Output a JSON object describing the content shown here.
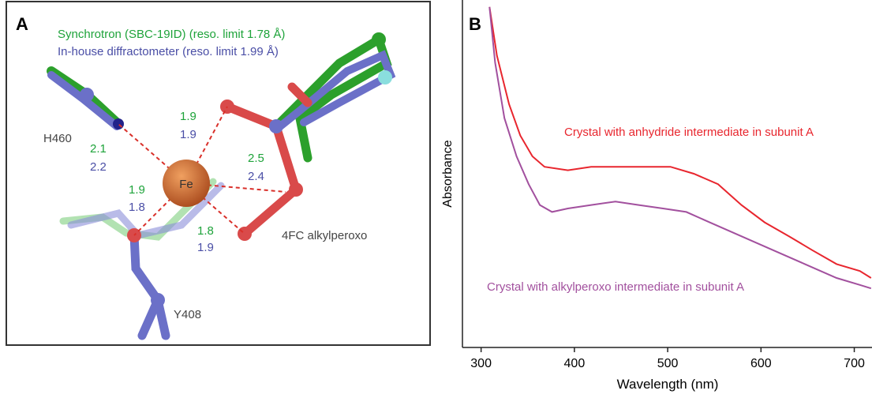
{
  "panel_a": {
    "label": "A",
    "legend": [
      "Synchrotron (SBC-19ID) (reso. limit 1.78 Å)",
      "In-house diffractometer (reso. limit 1.99 Å)"
    ],
    "atom": "Fe",
    "residues": [
      "H460",
      "Y408",
      "4FC alkylperoxo"
    ],
    "distances": [
      [
        "1.9",
        "1.9"
      ],
      [
        "2.1",
        "2.2"
      ],
      [
        "2.5",
        "2.4"
      ],
      [
        "1.9",
        "1.8"
      ],
      [
        "1.8",
        "1.9"
      ]
    ]
  },
  "chart_data": {
    "type": "line",
    "panel_label": "B",
    "x_label": "Wavelength (nm)",
    "y_label": "Absorbance",
    "xlim": [
      280,
      719
    ],
    "xticks": [
      300,
      400,
      500,
      600,
      700
    ],
    "ylim": [
      0,
      1
    ],
    "series": [
      {
        "name": "Crystal with anhydride intermediate in subunit A",
        "color": "#e8262e",
        "x": [
          309,
          317,
          330,
          342,
          355,
          368,
          393,
          418,
          444,
          469,
          503,
          528,
          554,
          579,
          604,
          630,
          655,
          681,
          706,
          718
        ],
        "values": [
          0.98,
          0.84,
          0.7,
          0.61,
          0.55,
          0.52,
          0.51,
          0.52,
          0.52,
          0.52,
          0.52,
          0.5,
          0.47,
          0.41,
          0.36,
          0.32,
          0.28,
          0.24,
          0.22,
          0.2
        ]
      },
      {
        "name": "Crystal with alkylperoxo intermediate in subunit A",
        "color": "#a2509e",
        "x": [
          309,
          315,
          325,
          338,
          351,
          363,
          376,
          393,
          418,
          444,
          469,
          495,
          520,
          545,
          579,
          613,
          647,
          681,
          706,
          718
        ],
        "values": [
          0.98,
          0.82,
          0.66,
          0.55,
          0.47,
          0.41,
          0.39,
          0.4,
          0.41,
          0.42,
          0.41,
          0.4,
          0.39,
          0.36,
          0.32,
          0.28,
          0.24,
          0.2,
          0.18,
          0.17
        ]
      }
    ]
  }
}
